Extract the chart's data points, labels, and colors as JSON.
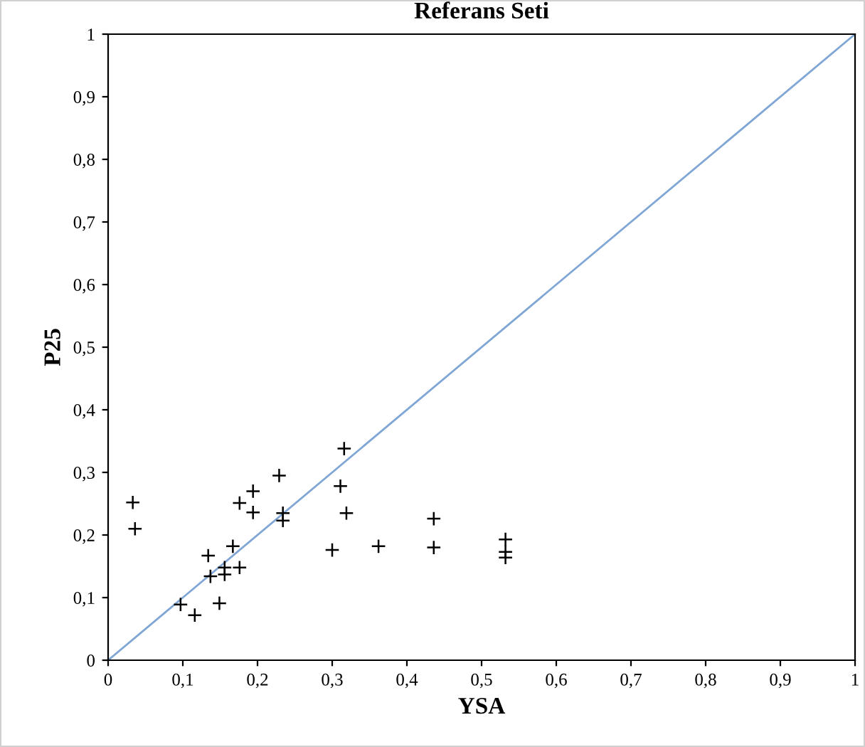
{
  "chart_data": {
    "type": "scatter",
    "title": "Referans Seti",
    "xlabel": "YSA",
    "ylabel": "P25",
    "xlim": [
      0,
      1
    ],
    "ylim": [
      0,
      1
    ],
    "xticks": [
      0,
      {
        "value": 0.1,
        "label": "0,1"
      },
      {
        "value": 0.2,
        "label": "0,2"
      },
      {
        "value": 0.3,
        "label": "0,3"
      },
      {
        "value": 0.4,
        "label": "0,4"
      },
      {
        "value": 0.5,
        "label": "0,5"
      },
      {
        "value": 0.6,
        "label": "0,6"
      },
      {
        "value": 0.7,
        "label": "0,7"
      },
      {
        "value": 0.8,
        "label": "0,8"
      },
      {
        "value": 0.9,
        "label": "0,9"
      },
      1
    ],
    "yticks": [
      0,
      {
        "value": 0.1,
        "label": "0,1"
      },
      {
        "value": 0.2,
        "label": "0,2"
      },
      {
        "value": 0.3,
        "label": "0,3"
      },
      {
        "value": 0.4,
        "label": "0,4"
      },
      {
        "value": 0.5,
        "label": "0,5"
      },
      {
        "value": 0.6,
        "label": "0,6"
      },
      {
        "value": 0.7,
        "label": "0,7"
      },
      {
        "value": 0.8,
        "label": "0,8"
      },
      {
        "value": 0.9,
        "label": "0,9"
      },
      1
    ],
    "grid": false,
    "marker": "cross",
    "series": [
      {
        "color": "#000000",
        "x": [
          0.033,
          0.036,
          0.097,
          0.116,
          0.149,
          0.134,
          0.137,
          0.156,
          0.156,
          0.167,
          0.176,
          0.176,
          0.194,
          0.194,
          0.229,
          0.234,
          0.234,
          0.316,
          0.311,
          0.319,
          0.3,
          0.362,
          0.436,
          0.436,
          0.532,
          0.532,
          0.532
        ],
        "values": [
          0.252,
          0.21,
          0.089,
          0.072,
          0.091,
          0.167,
          0.134,
          0.148,
          0.137,
          0.182,
          0.148,
          0.251,
          0.27,
          0.236,
          0.295,
          0.235,
          0.223,
          0.338,
          0.278,
          0.235,
          0.176,
          0.182,
          0.226,
          0.18,
          0.193,
          0.173,
          0.164
        ]
      },
      {
        "type": "line",
        "color": "#7fa6d4",
        "marker": "none",
        "x": [
          0,
          1
        ],
        "values": [
          0,
          1
        ]
      }
    ]
  }
}
